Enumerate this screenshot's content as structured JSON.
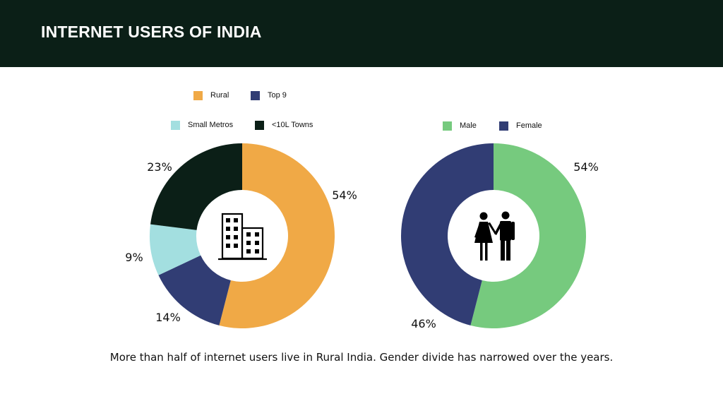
{
  "header": {
    "title": "INTERNET USERS OF INDIA"
  },
  "caption": "More than half of internet users live in Rural India. Gender divide has narrowed over the years.",
  "colors": {
    "rural": "#f0a946",
    "top9": "#313d74",
    "small_metros": "#a3dfe0",
    "towns": "#0b1f17",
    "male": "#76ca7e",
    "female": "#313d74",
    "header_bg": "#0b1f17"
  },
  "icons": {
    "left_center": "buildings-icon",
    "right_center": "couple-icon"
  },
  "chart_data": [
    {
      "type": "pie",
      "variant": "donut",
      "legend": [
        "Rural",
        "Top 9",
        "Small Metros",
        "<10L Towns"
      ],
      "slices": [
        {
          "label": "Rural",
          "value": 54,
          "display": "54%",
          "color": "#f0a946"
        },
        {
          "label": "Top 9",
          "value": 14,
          "display": "14%",
          "color": "#313d74"
        },
        {
          "label": "Small Metros",
          "value": 9,
          "display": "9%",
          "color": "#a3dfe0"
        },
        {
          "label": "<10L Towns",
          "value": 23,
          "display": "23%",
          "color": "#0b1f17"
        }
      ],
      "legend_placement": "top"
    },
    {
      "type": "pie",
      "variant": "donut",
      "legend": [
        "Male",
        "Female"
      ],
      "slices": [
        {
          "label": "Male",
          "value": 54,
          "display": "54%",
          "color": "#76ca7e"
        },
        {
          "label": "Female",
          "value": 46,
          "display": "46%",
          "color": "#313d74"
        }
      ],
      "legend_placement": "top"
    }
  ]
}
